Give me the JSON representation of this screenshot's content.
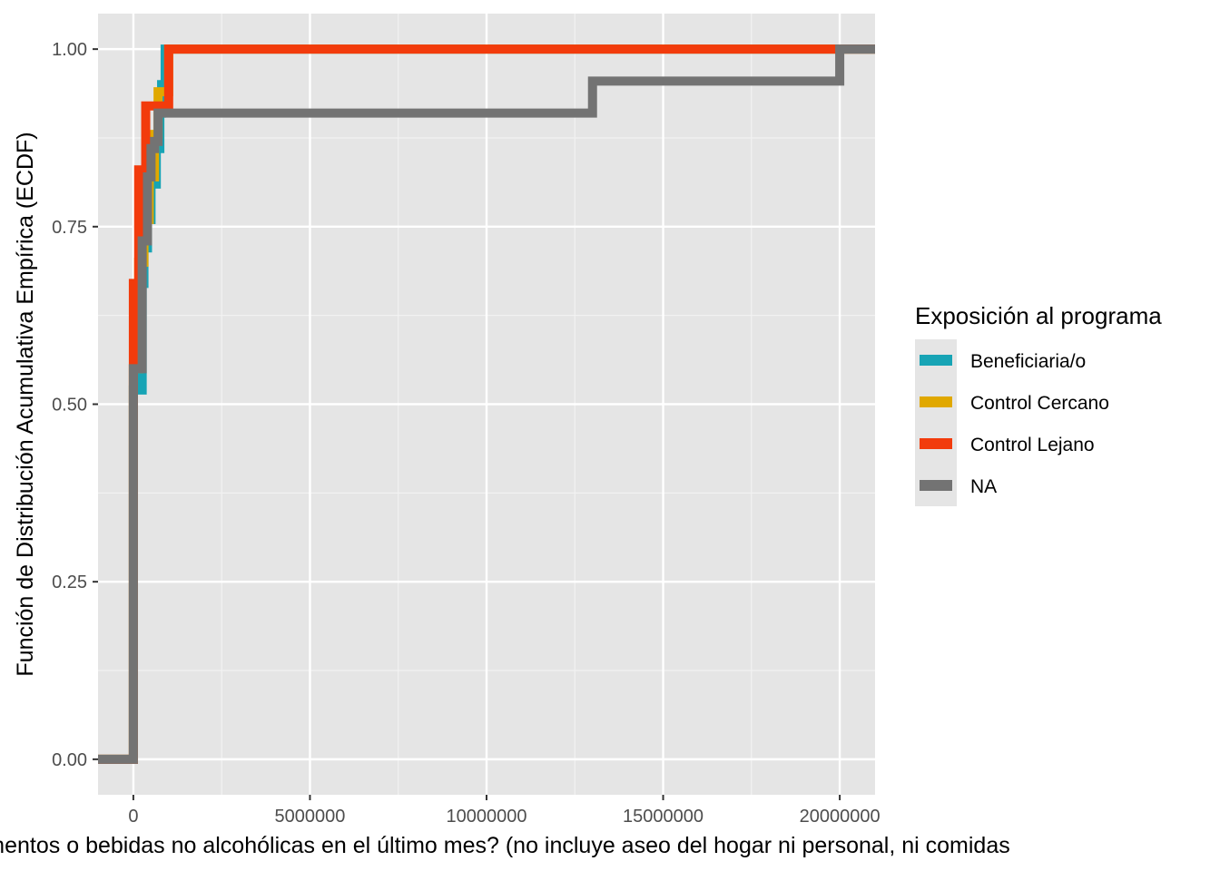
{
  "chart_data": {
    "type": "line",
    "subtype": "ecdf-step",
    "xlabel": "alimentos o bebidas no alcohólicas en el último mes? (no incluye aseo del hogar ni personal, ni comidas",
    "ylabel": "Función de Distribución Acumulativa Empírica (ECDF)",
    "xlim": [
      -1000000,
      21000000
    ],
    "ylim": [
      -0.05,
      1.05
    ],
    "x_ticks": [
      0,
      5000000,
      10000000,
      15000000,
      20000000
    ],
    "x_tick_labels": [
      "0",
      "5000000",
      "10000000",
      "15000000",
      "20000000"
    ],
    "y_ticks": [
      0,
      0.25,
      0.5,
      0.75,
      1
    ],
    "y_tick_labels": [
      "0.00",
      "0.25",
      "0.50",
      "0.75",
      "1.00"
    ],
    "grid": true,
    "background": "#e5e5e5",
    "legend": {
      "title": "Exposición al programa",
      "position": "right"
    },
    "series": [
      {
        "name": "Beneficiaria/o",
        "color": "#17a4b5",
        "x": [
          -1000000,
          0,
          250000,
          300000,
          400000,
          500000,
          650000,
          750000,
          800000,
          900000,
          21000000
        ],
        "y": [
          0,
          0.52,
          0.67,
          0.72,
          0.76,
          0.81,
          0.86,
          0.91,
          0.95,
          1.0,
          1.0
        ]
      },
      {
        "name": "Control Cercano",
        "color": "#e0a800",
        "x": [
          -1000000,
          0,
          150000,
          300000,
          450000,
          600000,
          700000,
          1000000,
          21000000
        ],
        "y": [
          0,
          0.55,
          0.7,
          0.76,
          0.82,
          0.88,
          0.94,
          1.0,
          1.0
        ]
      },
      {
        "name": "Control Lejano",
        "color": "#f23b0c",
        "x": [
          -1000000,
          0,
          150000,
          350000,
          1000000,
          21000000
        ],
        "y": [
          0,
          0.67,
          0.83,
          0.92,
          1.0,
          1.0
        ]
      },
      {
        "name": "NA",
        "color": "#737373",
        "x": [
          -1000000,
          0,
          250000,
          400000,
          500000,
          600000,
          700000,
          13000000,
          20000000,
          21000000
        ],
        "y": [
          0,
          0.55,
          0.73,
          0.82,
          0.86,
          0.87,
          0.91,
          0.955,
          1.0,
          1.0
        ]
      }
    ]
  }
}
